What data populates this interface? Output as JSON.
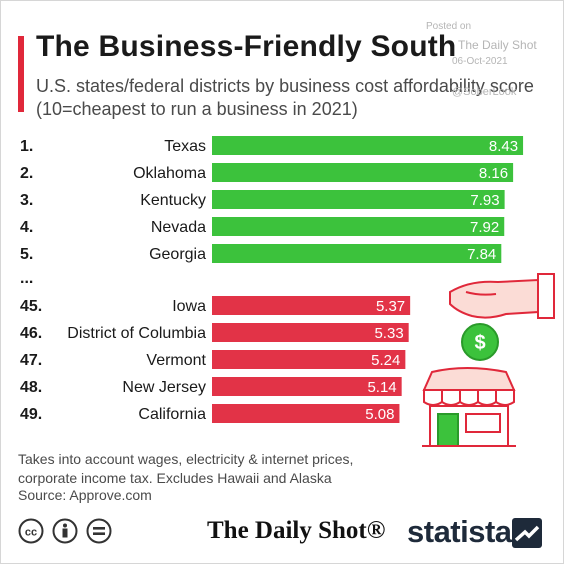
{
  "header": {
    "title": "The Business-Friendly South",
    "subtitle": "U.S. states/federal districts by business cost affordability score (10=cheapest to run a business in 2021)"
  },
  "watermark": {
    "line1": "Posted on",
    "line2": "The Daily Shot",
    "line3": "06-Oct-2021",
    "line4": "@SoberLook"
  },
  "chart_data": {
    "type": "bar",
    "orientation": "horizontal",
    "xlim": [
      0,
      10
    ],
    "ellipsis_label": "...",
    "rows": [
      {
        "rank": "1.",
        "name": "Texas",
        "value": 8.43,
        "group": "top"
      },
      {
        "rank": "2.",
        "name": "Oklahoma",
        "value": 8.16,
        "group": "top"
      },
      {
        "rank": "3.",
        "name": "Kentucky",
        "value": 7.93,
        "group": "top"
      },
      {
        "rank": "4.",
        "name": "Nevada",
        "value": 7.92,
        "group": "top"
      },
      {
        "rank": "5.",
        "name": "Georgia",
        "value": 7.84,
        "group": "top"
      },
      {
        "rank": "45.",
        "name": "Iowa",
        "value": 5.37,
        "group": "bottom"
      },
      {
        "rank": "46.",
        "name": "District of Columbia",
        "value": 5.33,
        "group": "bottom"
      },
      {
        "rank": "47.",
        "name": "Vermont",
        "value": 5.24,
        "group": "bottom"
      },
      {
        "rank": "48.",
        "name": "New Jersey",
        "value": 5.14,
        "group": "bottom"
      },
      {
        "rank": "49.",
        "name": "California",
        "value": 5.08,
        "group": "bottom"
      }
    ],
    "colors": {
      "top": "#3cc23c",
      "bottom": "#e23347"
    }
  },
  "footer": {
    "note": "Takes into account wages, electricity & internet prices, corporate income tax. Excludes Hawaii and Alaska",
    "source": "Source: Approve.com",
    "brand_left": "The Daily Shot®",
    "brand_right": "statista"
  },
  "icons": [
    "cc-icon",
    "info-icon",
    "equals-icon",
    "statista-logo-icon",
    "coin-hand-icon",
    "storefront-icon"
  ]
}
